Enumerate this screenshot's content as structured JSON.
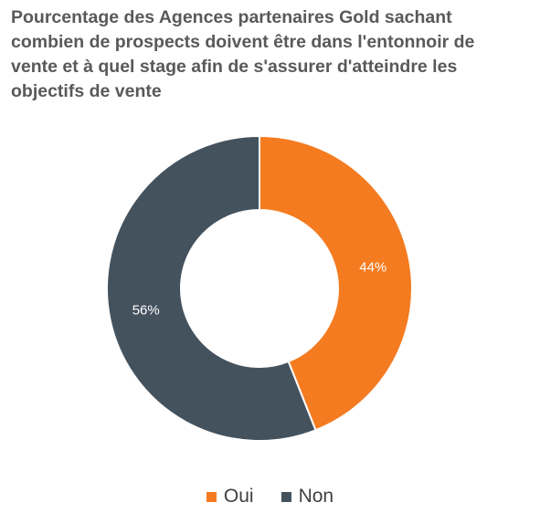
{
  "chart_data": {
    "type": "pie",
    "variant": "donut",
    "title": "Pourcentage des Agences partenaires Gold sachant combien de prospects doivent être dans l'entonnoir de vente et à quel stage afin de s'assurer d'atteindre les objectifs de vente",
    "categories": [
      "Oui",
      "Non"
    ],
    "values": [
      44,
      56
    ],
    "labels": [
      "44%",
      "56%"
    ],
    "colors": [
      "#F47B20",
      "#44525E"
    ],
    "legend_position": "bottom"
  }
}
